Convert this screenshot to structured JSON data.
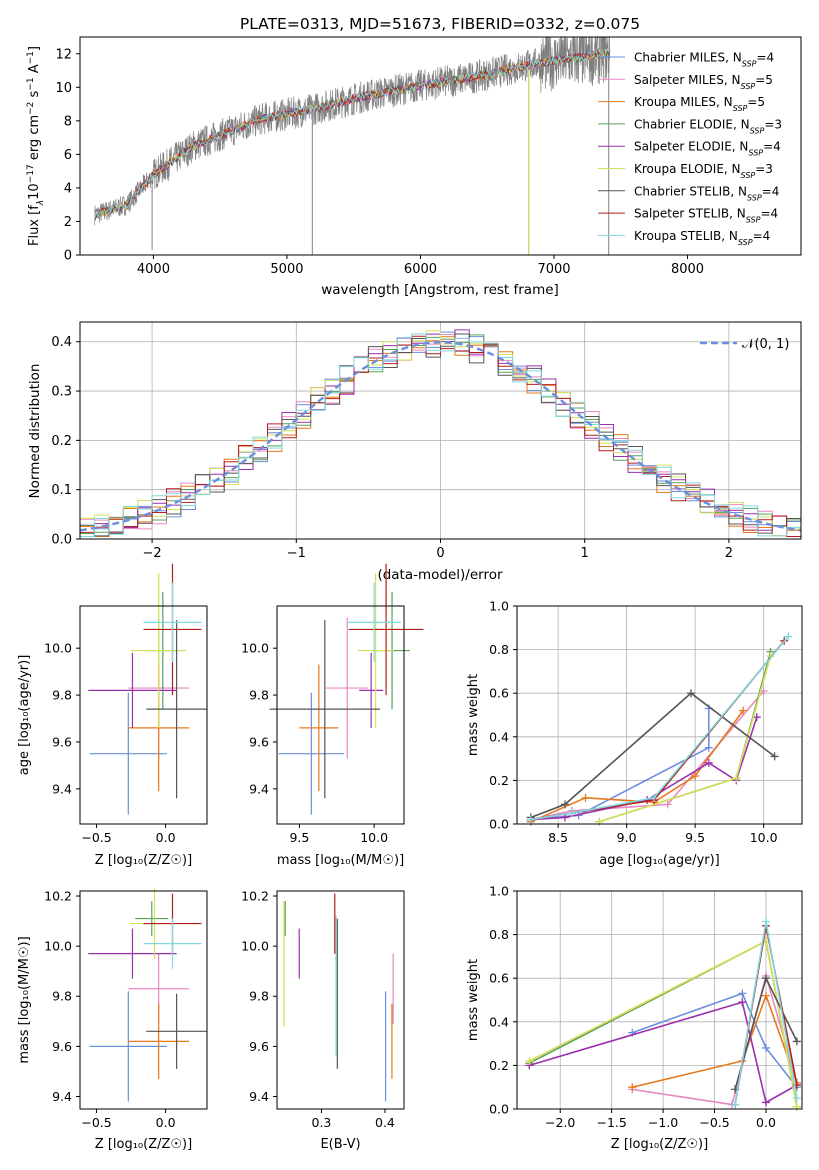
{
  "colors": {
    "Chabrier MILES": "#6a8fdc",
    "Salpeter MILES": "#e78ac3",
    "Kroupa MILES": "#e6791c",
    "Chabrier ELODIE": "#5aa05a",
    "Salpeter ELODIE": "#9b2fae",
    "Kroupa ELODIE": "#d4e157",
    "Chabrier STELIB": "#555555",
    "Salpeter STELIB": "#b71c1c",
    "Kroupa STELIB": "#80d8e0",
    "data": "#808080",
    "gaussian": "#6a8fdc"
  },
  "chart_data": [
    {
      "id": "spectrum",
      "type": "line",
      "title": "PLATE=0313, MJD=51673, FIBERID=0332, z=0.075",
      "xlabel": "wavelength [Angstrom, rest frame]",
      "ylabel": "Flux [f",
      "xlim": [
        3450,
        8850
      ],
      "ylim": [
        0,
        13
      ],
      "xticks": [
        "4000",
        "5000",
        "6000",
        "7000",
        "8000"
      ],
      "yticks": [
        "0",
        "2",
        "4",
        "6",
        "8",
        "10",
        "12"
      ],
      "legend": [
        {
          "name": "Chabrier MILES",
          "n": "4"
        },
        {
          "name": "Salpeter MILES",
          "n": "5"
        },
        {
          "name": "Kroupa MILES",
          "n": "5"
        },
        {
          "name": "Chabrier ELODIE",
          "n": "3"
        },
        {
          "name": "Salpeter ELODIE",
          "n": "4"
        },
        {
          "name": "Kroupa ELODIE",
          "n": "3"
        },
        {
          "name": "Chabrier STELIB",
          "n": "4"
        },
        {
          "name": "Salpeter STELIB",
          "n": "4"
        },
        {
          "name": "Kroupa STELIB",
          "n": "4"
        }
      ],
      "legend_placement": "right",
      "continuum": {
        "x": [
          3560,
          3800,
          4000,
          4300,
          4800,
          5200,
          5600,
          6000,
          6400,
          6800,
          7000,
          7300,
          7420
        ],
        "y": [
          2.4,
          3.0,
          4.8,
          6.5,
          8.1,
          8.7,
          9.5,
          10.1,
          10.6,
          11.3,
          11.6,
          11.9,
          12.1
        ]
      },
      "data_range": [
        3560,
        7420
      ],
      "models_range_miles": [
        3560,
        7420
      ]
    },
    {
      "id": "residuals",
      "type": "line",
      "xlabel": "(data-model)/error",
      "ylabel": "Normed distribution",
      "xlim": [
        -2.5,
        2.5
      ],
      "ylim": [
        0,
        0.44
      ],
      "xticks": [
        "−2",
        "−1",
        "0",
        "1",
        "2"
      ],
      "xtick_values": [
        -2,
        -1,
        0,
        1,
        2
      ],
      "yticks": [
        "0.0",
        "0.1",
        "0.2",
        "0.3",
        "0.4"
      ],
      "ytick_values": [
        0,
        0.1,
        0.2,
        0.3,
        0.4
      ],
      "grid": true,
      "legend": [
        {
          "name": "𝒩(0, 1)"
        }
      ],
      "legend_placement": "top-right",
      "bin_width": 0.1,
      "gaussian": {
        "mean": 0,
        "sigma": 1
      }
    },
    {
      "id": "z-age",
      "type": "scatter",
      "xlabel": "Z [log₁₀(Z/Z☉)]",
      "ylabel": "age  [log₁₀(age/yr)]",
      "xlim": [
        -0.62,
        0.3
      ],
      "ylim": [
        9.25,
        10.18
      ],
      "xticks": [
        "−0.5",
        "0.0"
      ],
      "xtick_values": [
        -0.5,
        0.0
      ],
      "yticks": [
        "9.4",
        "9.6",
        "9.8",
        "10.0"
      ],
      "ytick_values": [
        9.4,
        9.6,
        9.8,
        10.0
      ],
      "points": [
        {
          "model": "Chabrier MILES",
          "x": -0.27,
          "xerr": 0.28,
          "y": 9.55,
          "yerr": 0.26
        },
        {
          "model": "Salpeter MILES",
          "x": -0.05,
          "xerr": 0.22,
          "y": 9.83,
          "yerr": 0.3
        },
        {
          "model": "Kroupa MILES",
          "x": -0.05,
          "xerr": 0.22,
          "y": 9.66,
          "yerr": 0.27
        },
        {
          "model": "Chabrier ELODIE",
          "x": -0.02,
          "xerr": 0.12,
          "y": 9.99,
          "yerr": 0.25
        },
        {
          "model": "Salpeter ELODIE",
          "x": -0.24,
          "xerr": 0.32,
          "y": 9.82,
          "yerr": 0.16
        },
        {
          "model": "Kroupa ELODIE",
          "x": -0.05,
          "xerr": 0.2,
          "y": 9.99,
          "yerr": 0.33
        },
        {
          "model": "Chabrier STELIB",
          "x": 0.08,
          "xerr": 0.22,
          "y": 9.74,
          "yerr": 0.38
        },
        {
          "model": "Salpeter STELIB",
          "x": 0.05,
          "xerr": 0.21,
          "y": 10.08,
          "yerr": 0.28
        },
        {
          "model": "Kroupa STELIB",
          "x": 0.05,
          "xerr": 0.21,
          "y": 10.11,
          "yerr": 0.17
        }
      ]
    },
    {
      "id": "mass-age",
      "type": "scatter",
      "xlabel": "mass [log₁₀(M/M☉)]",
      "xlim": [
        9.35,
        10.2
      ],
      "ylim": [
        9.25,
        10.18
      ],
      "xticks": [
        "9.5",
        "10.0"
      ],
      "xtick_values": [
        9.5,
        10.0
      ],
      "yticks": [
        "9.4",
        "9.6",
        "9.8",
        "10.0"
      ],
      "ytick_values": [
        9.4,
        9.6,
        9.8,
        10.0
      ],
      "points": [
        {
          "model": "Chabrier MILES",
          "x": 9.58,
          "xerr": 0.22,
          "y": 9.55,
          "yerr": 0.26
        },
        {
          "model": "Salpeter MILES",
          "x": 9.82,
          "xerr": 0.14,
          "y": 9.83,
          "yerr": 0.3
        },
        {
          "model": "Kroupa MILES",
          "x": 9.63,
          "xerr": 0.13,
          "y": 9.66,
          "yerr": 0.27
        },
        {
          "model": "Chabrier ELODIE",
          "x": 10.12,
          "xerr": 0.12,
          "y": 9.99,
          "yerr": 0.25
        },
        {
          "model": "Salpeter ELODIE",
          "x": 9.98,
          "xerr": 0.08,
          "y": 9.82,
          "yerr": 0.16
        },
        {
          "model": "Kroupa ELODIE",
          "x": 10.01,
          "xerr": 0.12,
          "y": 9.99,
          "yerr": 0.33
        },
        {
          "model": "Chabrier STELIB",
          "x": 9.67,
          "xerr": 0.37,
          "y": 9.74,
          "yerr": 0.38
        },
        {
          "model": "Salpeter STELIB",
          "x": 10.08,
          "xerr": 0.25,
          "y": 10.08,
          "yerr": 0.28
        },
        {
          "model": "Kroupa STELIB",
          "x": 10.0,
          "xerr": 0.18,
          "y": 10.11,
          "yerr": 0.17
        }
      ]
    },
    {
      "id": "age-weight",
      "type": "line",
      "xlabel": "age  [log₁₀(age/yr)]",
      "ylabel": "mass weight",
      "xlim": [
        8.2,
        10.28
      ],
      "ylim": [
        0,
        1
      ],
      "xticks": [
        "8.5",
        "9.0",
        "9.5",
        "10.0"
      ],
      "xtick_values": [
        8.5,
        9.0,
        9.5,
        10.0
      ],
      "yticks": [
        "0.0",
        "0.2",
        "0.4",
        "0.6",
        "0.8",
        "1.0"
      ],
      "ytick_values": [
        0,
        0.2,
        0.4,
        0.6,
        0.8,
        1.0
      ],
      "grid": true,
      "series": [
        {
          "model": "Chabrier MILES",
          "x": [
            8.3,
            8.65,
            9.6,
            9.6
          ],
          "y": [
            0.02,
            0.04,
            0.35,
            0.53
          ]
        },
        {
          "model": "Salpeter MILES",
          "x": [
            8.3,
            8.6,
            9.3,
            10.0
          ],
          "y": [
            0.02,
            0.06,
            0.09,
            0.61
          ]
        },
        {
          "model": "Kroupa MILES",
          "x": [
            8.3,
            8.7,
            9.2,
            9.5,
            9.85
          ],
          "y": [
            0.01,
            0.12,
            0.1,
            0.22,
            0.52
          ]
        },
        {
          "model": "Chabrier ELODIE",
          "x": [
            8.8,
            9.8,
            10.05
          ],
          "y": [
            0.01,
            0.21,
            0.79
          ]
        },
        {
          "model": "Salpeter ELODIE",
          "x": [
            8.3,
            8.55,
            9.15,
            9.6,
            9.8,
            9.95
          ],
          "y": [
            0.02,
            0.03,
            0.11,
            0.28,
            0.2,
            0.49
          ]
        },
        {
          "model": "Kroupa ELODIE",
          "x": [
            8.8,
            9.8,
            10.05
          ],
          "y": [
            0.01,
            0.21,
            0.77
          ]
        },
        {
          "model": "Chabrier STELIB",
          "x": [
            8.3,
            8.55,
            9.47,
            10.08
          ],
          "y": [
            0.03,
            0.09,
            0.6,
            0.31
          ]
        },
        {
          "model": "Salpeter STELIB",
          "x": [
            8.3,
            8.6,
            9.2,
            10.15
          ],
          "y": [
            0.02,
            0.05,
            0.11,
            0.84
          ]
        },
        {
          "model": "Kroupa STELIB",
          "x": [
            8.3,
            8.6,
            9.2,
            10.18
          ],
          "y": [
            0.02,
            0.05,
            0.12,
            0.86
          ]
        }
      ]
    },
    {
      "id": "z-mass",
      "type": "scatter",
      "xlabel": "Z [log₁₀(Z/Z☉)]",
      "ylabel": "mass [log₁₀(M/M☉)]",
      "xlim": [
        -0.62,
        0.3
      ],
      "ylim": [
        9.35,
        10.22
      ],
      "xticks": [
        "−0.5",
        "0.0"
      ],
      "xtick_values": [
        -0.5,
        0.0
      ],
      "yticks": [
        "9.4",
        "9.6",
        "9.8",
        "10.0",
        "10.2"
      ],
      "ytick_values": [
        9.4,
        9.6,
        9.8,
        10.0,
        10.2
      ],
      "points": [
        {
          "model": "Chabrier MILES",
          "x": -0.27,
          "xerr": 0.28,
          "y": 9.6,
          "yerr": 0.22
        },
        {
          "model": "Salpeter MILES",
          "x": -0.05,
          "xerr": 0.22,
          "y": 9.83,
          "yerr": 0.14
        },
        {
          "model": "Kroupa MILES",
          "x": -0.05,
          "xerr": 0.22,
          "y": 9.62,
          "yerr": 0.15
        },
        {
          "model": "Chabrier ELODIE",
          "x": -0.1,
          "xerr": 0.12,
          "y": 10.11,
          "yerr": 0.07
        },
        {
          "model": "Salpeter ELODIE",
          "x": -0.24,
          "xerr": 0.32,
          "y": 9.97,
          "yerr": 0.1
        },
        {
          "model": "Kroupa ELODIE",
          "x": -0.08,
          "xerr": 0.18,
          "y": 10.09,
          "yerr": 0.14
        },
        {
          "model": "Chabrier STELIB",
          "x": 0.08,
          "xerr": 0.22,
          "y": 9.66,
          "yerr": 0.15
        },
        {
          "model": "Salpeter STELIB",
          "x": 0.05,
          "xerr": 0.21,
          "y": 10.09,
          "yerr": 0.12
        },
        {
          "model": "Kroupa STELIB",
          "x": 0.05,
          "xerr": 0.21,
          "y": 10.01,
          "yerr": 0.1
        }
      ]
    },
    {
      "id": "ebv-mass",
      "type": "scatter",
      "xlabel": "E(B-V)",
      "xlim": [
        0.23,
        0.43
      ],
      "ylim": [
        9.35,
        10.22
      ],
      "xticks": [
        "0.3",
        "0.4"
      ],
      "xtick_values": [
        0.3,
        0.4
      ],
      "yticks": [
        "9.4",
        "9.6",
        "9.8",
        "10.0",
        "10.2"
      ],
      "ytick_values": [
        9.4,
        9.6,
        9.8,
        10.0,
        10.2
      ],
      "points": [
        {
          "model": "Chabrier MILES",
          "x": 0.401,
          "y": 9.6,
          "yerr": 0.22
        },
        {
          "model": "Salpeter MILES",
          "x": 0.413,
          "y": 9.83,
          "yerr": 0.14
        },
        {
          "model": "Kroupa MILES",
          "x": 0.411,
          "y": 9.62,
          "yerr": 0.15
        },
        {
          "model": "Chabrier ELODIE",
          "x": 0.243,
          "y": 10.11,
          "yerr": 0.07
        },
        {
          "model": "Salpeter ELODIE",
          "x": 0.265,
          "y": 9.97,
          "yerr": 0.1
        },
        {
          "model": "Kroupa ELODIE",
          "x": 0.241,
          "y": 9.93,
          "yerr": 0.25
        },
        {
          "model": "Chabrier STELIB",
          "x": 0.325,
          "y": 9.81,
          "yerr": 0.3
        },
        {
          "model": "Salpeter STELIB",
          "x": 0.321,
          "y": 10.09,
          "yerr": 0.12
        },
        {
          "model": "Kroupa STELIB",
          "x": 0.323,
          "y": 9.84,
          "yerr": 0.28
        }
      ]
    },
    {
      "id": "z-weight",
      "type": "line",
      "xlabel": "Z [log₁₀(Z/Z☉)]",
      "ylabel": "mass weight",
      "xlim": [
        -2.42,
        0.35
      ],
      "ylim": [
        0,
        1
      ],
      "xticks": [
        "−2.0",
        "−1.5",
        "−1.0",
        "−0.5",
        "0.0"
      ],
      "xtick_values": [
        -2.0,
        -1.5,
        -1.0,
        -0.5,
        0.0
      ],
      "yticks": [
        "0.0",
        "0.2",
        "0.4",
        "0.6",
        "0.8",
        "1.0"
      ],
      "ytick_values": [
        0,
        0.2,
        0.4,
        0.6,
        0.8,
        1.0
      ],
      "grid": true,
      "series": [
        {
          "model": "Chabrier MILES",
          "x": [
            -1.3,
            -0.23,
            0.0,
            0.3
          ],
          "y": [
            0.35,
            0.53,
            0.28,
            0.1
          ]
        },
        {
          "model": "Salpeter MILES",
          "x": [
            -1.3,
            -0.33,
            0.0,
            0.3
          ],
          "y": [
            0.09,
            0.02,
            0.61,
            0.12
          ]
        },
        {
          "model": "Kroupa MILES",
          "x": [
            -1.3,
            -0.23,
            0.0,
            0.3
          ],
          "y": [
            0.1,
            0.22,
            0.52,
            0.12
          ]
        },
        {
          "model": "Chabrier ELODIE",
          "x": [
            -2.3,
            0.0,
            0.3
          ],
          "y": [
            0.21,
            0.77,
            0.01
          ]
        },
        {
          "model": "Salpeter ELODIE",
          "x": [
            -2.3,
            -0.23,
            0.0,
            0.3
          ],
          "y": [
            0.2,
            0.49,
            0.03,
            0.11
          ]
        },
        {
          "model": "Kroupa ELODIE",
          "x": [
            -2.3,
            0.0,
            0.3
          ],
          "y": [
            0.22,
            0.77,
            0.01
          ]
        },
        {
          "model": "Chabrier STELIB",
          "x": [
            -0.3,
            0.0,
            0.3
          ],
          "y": [
            0.09,
            0.6,
            0.31
          ]
        },
        {
          "model": "Salpeter STELIB",
          "x": [
            -0.3,
            0.0,
            0.3
          ],
          "y": [
            0.02,
            0.84,
            0.11
          ]
        },
        {
          "model": "Kroupa STELIB",
          "x": [
            -0.3,
            0.0,
            0.3
          ],
          "y": [
            0.02,
            0.86,
            0.05
          ]
        }
      ]
    }
  ]
}
